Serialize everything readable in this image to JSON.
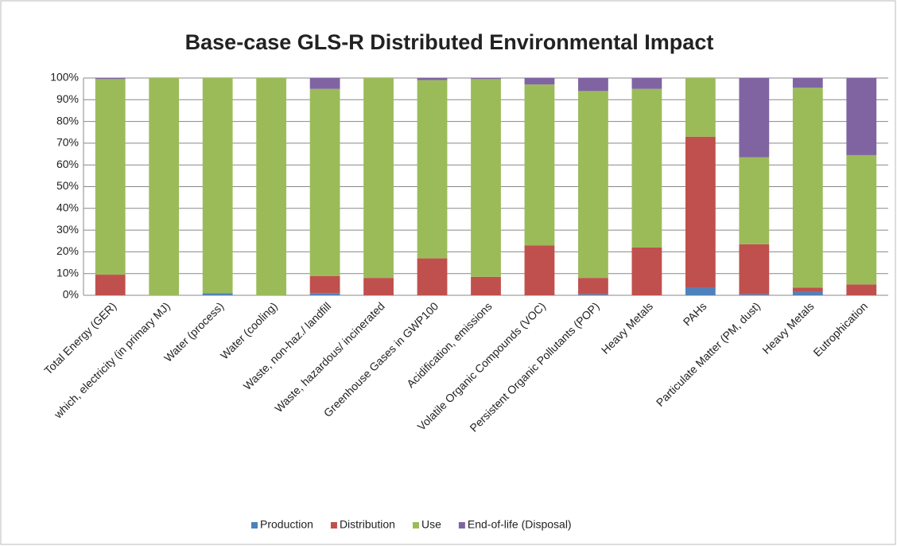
{
  "chart_data": {
    "type": "stacked_bar",
    "title": "Base-case GLS-R Distributed Environmental Impact",
    "categories": [
      "Total Energy (GER)",
      "which, electricity (in primary MJ)",
      "Water (process)",
      "Water (cooling)",
      "Waste, non-haz./ landfill",
      "Waste, hazardous/ incinerated",
      "Greenhouse Gases in GWP100",
      "Acidification, emissions",
      "Volatile Organic Compounds (VOC)",
      "Persistent Organic Pollutants (POP)",
      "Heavy Metals",
      "PAHs",
      "Particulate Matter (PM, dust)",
      "Heavy Metals",
      "Eutrophication"
    ],
    "series": [
      {
        "name": "Production",
        "color": "#4f81bd",
        "values": [
          0,
          0,
          1,
          0,
          1,
          0,
          0,
          0,
          0,
          0.5,
          0,
          3.5,
          0.5,
          1.5,
          0
        ]
      },
      {
        "name": "Distribution",
        "color": "#c0504d",
        "values": [
          9.5,
          0,
          0,
          0,
          7.8,
          8,
          17,
          8.5,
          23,
          7.5,
          22,
          69.5,
          23,
          2,
          5
        ]
      },
      {
        "name": "Use",
        "color": "#9bbb59",
        "values": [
          90,
          100,
          99,
          100,
          86.2,
          92,
          82,
          91,
          74,
          86,
          73,
          27,
          40,
          92,
          59.5
        ]
      },
      {
        "name": "End-of-life (Disposal)",
        "color": "#8064a2",
        "values": [
          0.5,
          0,
          0,
          0,
          5,
          0,
          1,
          0.5,
          3,
          6,
          5,
          0,
          36.5,
          4.5,
          35.5
        ]
      }
    ],
    "ylim": [
      0,
      100
    ],
    "yticks": [
      {
        "value": 0,
        "label": "0%"
      },
      {
        "value": 10,
        "label": "10%"
      },
      {
        "value": 20,
        "label": "20%"
      },
      {
        "value": 30,
        "label": "30%"
      },
      {
        "value": 40,
        "label": "40%"
      },
      {
        "value": 50,
        "label": "50%"
      },
      {
        "value": 60,
        "label": "60%"
      },
      {
        "value": 70,
        "label": "70%"
      },
      {
        "value": 80,
        "label": "80%"
      },
      {
        "value": 90,
        "label": "90%"
      },
      {
        "value": 100,
        "label": "100%"
      }
    ],
    "grid": true,
    "legend": "bottom"
  }
}
